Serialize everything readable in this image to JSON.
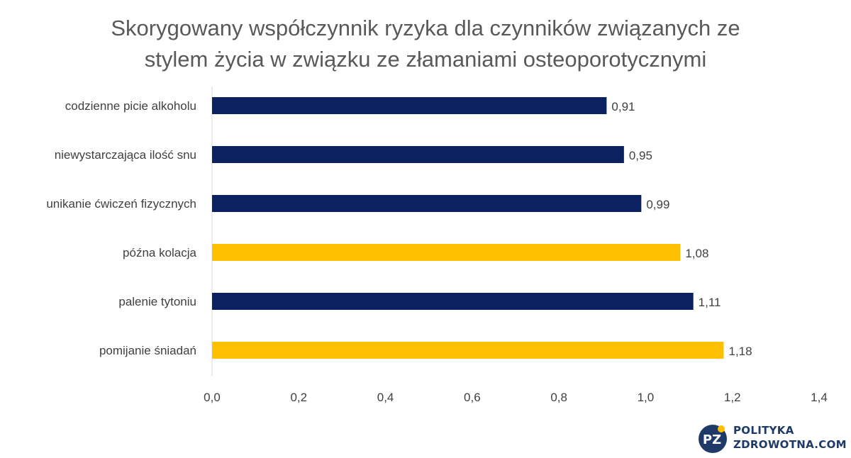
{
  "chart_data": {
    "type": "bar",
    "orientation": "horizontal",
    "title_lines": [
      "Skorygowany współczynnik ryzyka dla czynników związanych ze",
      "stylem życia w związku ze złamaniami osteoporotycznymi"
    ],
    "categories": [
      "codzienne picie alkoholu",
      "niewystarczająca ilość snu",
      "unikanie ćwiczeń fizycznych",
      "późna kolacja",
      "palenie tytoniu",
      "pomijanie śniadań"
    ],
    "values": [
      0.91,
      0.95,
      0.99,
      1.08,
      1.11,
      1.18
    ],
    "data_labels": [
      "0,91",
      "0,95",
      "0,99",
      "1,08",
      "1,11",
      "1,18"
    ],
    "bar_colors": [
      "#0b2160",
      "#0b2160",
      "#0b2160",
      "#ffc000",
      "#0b2160",
      "#ffc000"
    ],
    "xlim": [
      0,
      1.4
    ],
    "x_ticks": [
      0,
      0.2,
      0.4,
      0.6,
      0.8,
      1.0,
      1.2,
      1.4
    ],
    "x_tick_labels": [
      "0,0",
      "0,2",
      "0,4",
      "0,6",
      "0,8",
      "1,0",
      "1,2",
      "1,4"
    ],
    "grid": false,
    "legend": "none"
  },
  "logo": {
    "badge_text": "PZ",
    "line1": "POLITYKA",
    "line2": "ZDROWOTNA.COM",
    "badge_color": "#1f3a68",
    "dot_color": "#ffc000"
  }
}
